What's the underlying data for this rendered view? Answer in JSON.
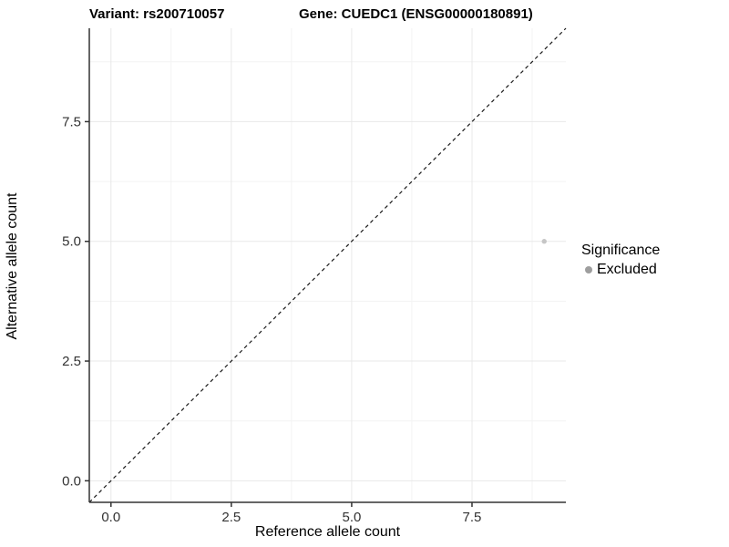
{
  "figure": {
    "title_left": "Variant: rs200710057",
    "title_right": "Gene: CUEDC1 (ENSG00000180891)"
  },
  "chart_data": {
    "type": "scatter",
    "title": "Variant: rs200710057  Gene: CUEDC1 (ENSG00000180891)",
    "xlabel": "Reference allele count",
    "ylabel": "Alternative allele count",
    "xlim": [
      -0.45,
      9.45
    ],
    "ylim": [
      -0.45,
      9.45
    ],
    "x_ticks": {
      "values": [
        0,
        2.5,
        5,
        7.5
      ],
      "labels": [
        "0.0",
        "2.5",
        "5.0",
        "7.5"
      ]
    },
    "y_ticks": {
      "values": [
        0,
        2.5,
        5,
        7.5
      ],
      "labels": [
        "0.0",
        "2.5",
        "5.0",
        "7.5"
      ]
    },
    "x_minor": [
      1.25,
      3.75,
      6.25,
      8.75
    ],
    "y_minor": [
      1.25,
      3.75,
      6.25,
      8.75
    ],
    "grid": "major+minor",
    "identity_line": {
      "style": "dashed",
      "equation": "y = x"
    },
    "series": [
      {
        "name": "Excluded",
        "points": [
          {
            "x": 9,
            "y": 5
          }
        ],
        "color": "#c6c6c6"
      }
    ],
    "legend": {
      "title": "Significance",
      "position": "right",
      "entries": [
        {
          "label": "Excluded",
          "color": "#9e9e9e"
        }
      ]
    }
  },
  "colors": {
    "background": "#ffffff",
    "grid_major": "#e8e8e8",
    "grid_minor": "#f3f3f3",
    "axis_line": "#333333",
    "tick_label": "#333333",
    "dashed_line": "#1a1a1a",
    "point": "#c6c6c6",
    "legend_dot": "#9e9e9e"
  }
}
